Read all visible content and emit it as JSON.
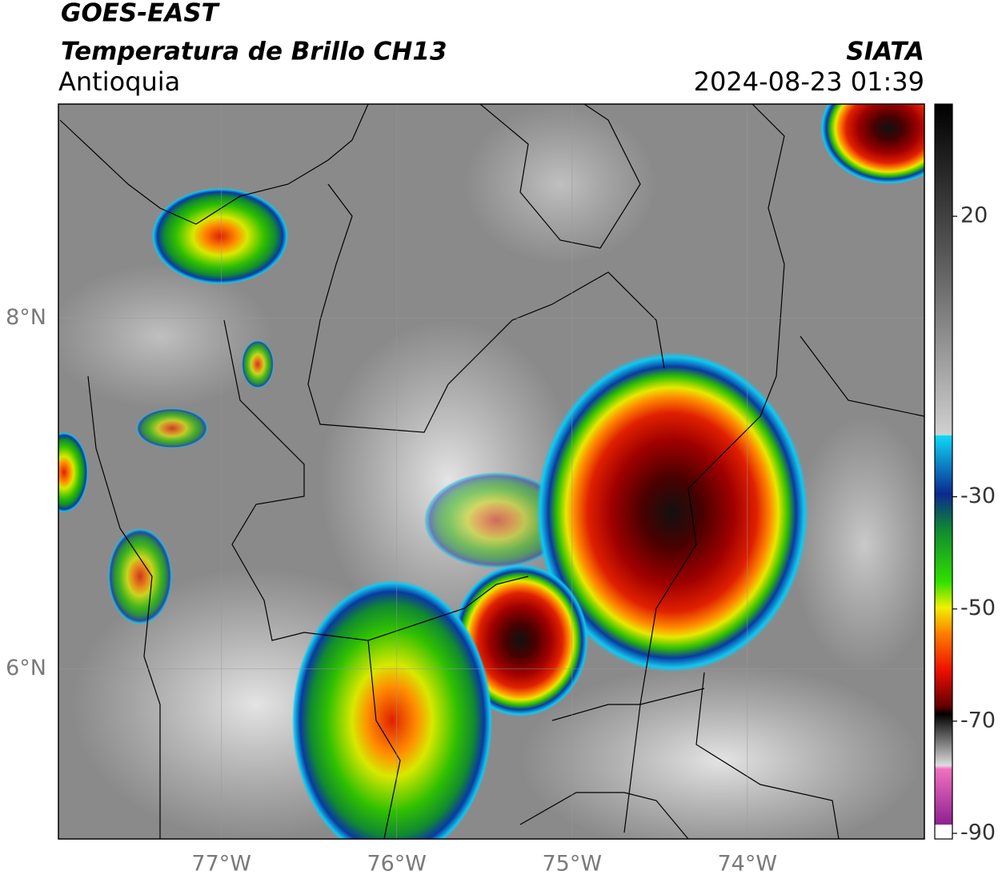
{
  "header": {
    "satellite": "GOES-EAST",
    "product": "Temperatura de Brillo CH13",
    "region": "Antioquia",
    "agency": "SIATA",
    "timestamp": "2024-08-23 01:39"
  },
  "map": {
    "xlim": [
      -77.93,
      -72.99
    ],
    "ylim": [
      5.03,
      9.22
    ],
    "xticks": [
      {
        "value": -77,
        "label": "77°W"
      },
      {
        "value": -76,
        "label": "76°W"
      },
      {
        "value": -75,
        "label": "75°W"
      },
      {
        "value": -74,
        "label": "74°W"
      }
    ],
    "yticks": [
      {
        "value": 8,
        "label": "8°N"
      },
      {
        "value": 6,
        "label": "6°N"
      }
    ],
    "grid": true
  },
  "colorbar": {
    "lim": [
      -91,
      40
    ],
    "ticks": [
      20,
      -30,
      -50,
      -70,
      -90
    ]
  }
}
